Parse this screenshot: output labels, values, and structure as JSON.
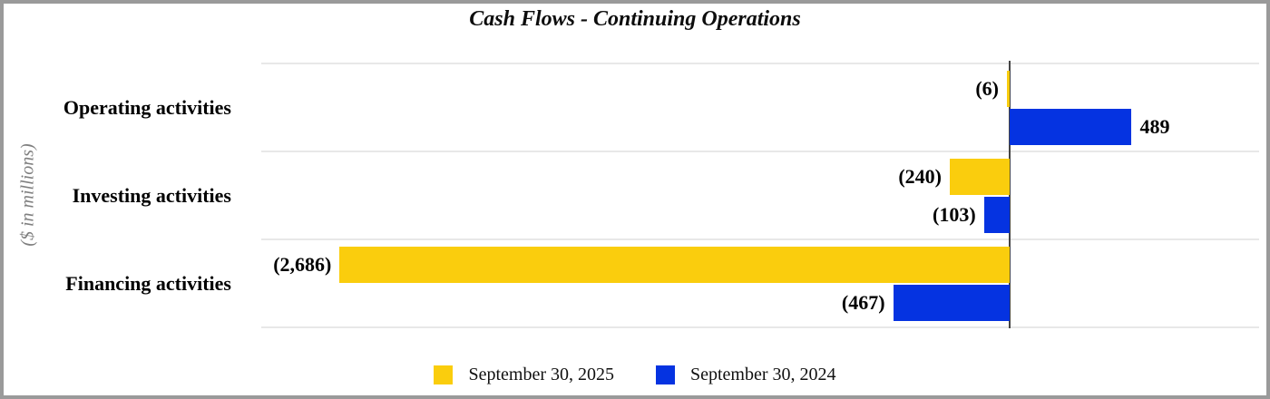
{
  "chart_data": {
    "type": "bar",
    "orientation": "horizontal",
    "title": "Cash Flows - Continuing Operations",
    "ylabel": "($ in millions)",
    "categories": [
      "Operating activities",
      "Investing activities",
      "Financing activities"
    ],
    "series": [
      {
        "name": "September 30, 2025",
        "color": "#FACD0D",
        "values": [
          -6,
          -240,
          -2686
        ],
        "value_labels": [
          "(6)",
          "(240)",
          "(2,686)"
        ]
      },
      {
        "name": "September 30, 2024",
        "color": "#0533E1",
        "values": [
          489,
          -103,
          -467
        ],
        "value_labels": [
          "489",
          "(103)",
          "(467)"
        ]
      }
    ],
    "xlim": [
      -3000,
      1000
    ],
    "grid": "horizontal-row-separators",
    "legend_position": "bottom-center",
    "colors": {
      "gridline": "#e8e8e8",
      "zero_axis": "#454545",
      "value_label": "#000000",
      "ylabel": "#7f7f7f",
      "frame_border": "#9a9a9a",
      "background": "#ffffff"
    }
  }
}
